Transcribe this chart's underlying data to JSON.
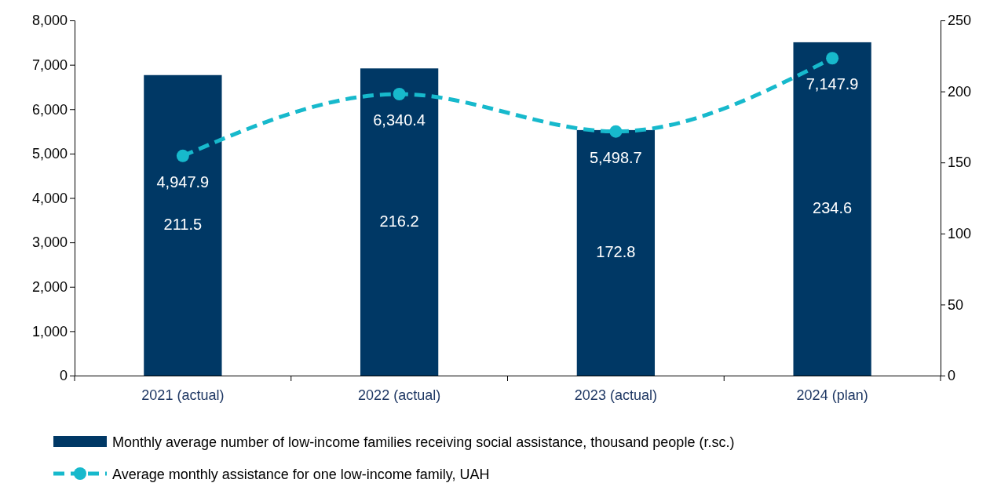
{
  "chart_data": {
    "type": "bar",
    "categories": [
      "2021 (actual)",
      "2022 (actual)",
      "2023 (actual)",
      "2024 (plan)"
    ],
    "series": [
      {
        "name": "Monthly average number of low-income families receiving social assistance, thousand people (r.sc.)",
        "axis": "y2",
        "color": "#003865",
        "values": [
          211.5,
          216.2,
          172.8,
          234.6
        ],
        "value_labels": [
          "211.5",
          "216.2",
          "172.8",
          "234.6"
        ]
      },
      {
        "name": "Average monthly assistance for one low-income family, UAH",
        "type": "line",
        "color": "#17b9cc",
        "values": [
          4947.9,
          6340.4,
          5498.7,
          7147.9
        ],
        "value_labels": [
          "4,947.9",
          "6,340.4",
          "5,498.7",
          "7,147.9"
        ],
        "marker": "circle",
        "line_style": "dashed"
      }
    ],
    "ylim": [
      0,
      8000
    ],
    "yticks": [
      0,
      {
        "value": 1000,
        "label": "1,000"
      },
      {
        "value": 2000,
        "label": "2,000"
      },
      {
        "value": 3000,
        "label": "3,000"
      },
      {
        "value": 4000,
        "label": "4,000"
      },
      {
        "value": 5000,
        "label": "5,000"
      },
      {
        "value": 6000,
        "label": "6,000"
      },
      {
        "value": 7000,
        "label": "7,000"
      },
      {
        "value": 8000,
        "label": "8,000"
      }
    ],
    "y2lim": [
      0,
      250
    ],
    "y2ticks": [
      0,
      50,
      100,
      150,
      200,
      250
    ],
    "grid": false,
    "legend": "bottom"
  }
}
